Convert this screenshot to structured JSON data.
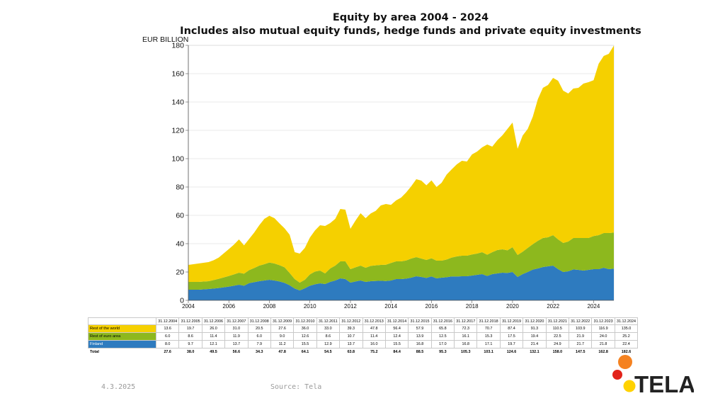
{
  "chart_data": {
    "type": "area",
    "stacked": true,
    "title": "Equity by area 2004 - 2024",
    "subtitle": "Includes also mutual equity funds, hedge funds and private equity investments",
    "ylabel": "EUR BILLION",
    "xlabel": "",
    "ylim": [
      0,
      180
    ],
    "yticks": [
      0,
      20,
      40,
      60,
      80,
      100,
      120,
      140,
      160,
      180
    ],
    "xlim": [
      2004,
      2025
    ],
    "xticks": [
      2004,
      2006,
      2008,
      2010,
      2012,
      2014,
      2016,
      2018,
      2020,
      2022,
      2024
    ],
    "grid": true,
    "legend": "table-below",
    "colors": {
      "finland": "#2e7bbf",
      "euro_area": "#8db81e",
      "world": "#f5d000"
    },
    "series_x": [
      2004.0,
      2004.5,
      2005.0,
      2005.25,
      2005.5,
      2005.75,
      2006.0,
      2006.25,
      2006.5,
      2006.75,
      2007.0,
      2007.25,
      2007.5,
      2007.75,
      2008.0,
      2008.25,
      2008.5,
      2008.75,
      2009.0,
      2009.25,
      2009.5,
      2009.75,
      2010.0,
      2010.25,
      2010.5,
      2010.75,
      2011.0,
      2011.25,
      2011.5,
      2011.75,
      2012.0,
      2012.25,
      2012.5,
      2012.75,
      2013.0,
      2013.25,
      2013.5,
      2013.75,
      2014.0,
      2014.25,
      2014.5,
      2014.75,
      2015.0,
      2015.25,
      2015.5,
      2015.75,
      2016.0,
      2016.25,
      2016.5,
      2016.75,
      2017.0,
      2017.25,
      2017.5,
      2017.75,
      2018.0,
      2018.25,
      2018.5,
      2018.75,
      2019.0,
      2019.25,
      2019.5,
      2019.75,
      2020.0,
      2020.25,
      2020.5,
      2020.75,
      2021.0,
      2021.25,
      2021.5,
      2021.75,
      2022.0,
      2022.25,
      2022.5,
      2022.75,
      2023.0,
      2023.25,
      2023.5,
      2023.75,
      2024.0,
      2024.25,
      2024.5,
      2024.75,
      2025.0
    ],
    "series": [
      {
        "name": "Finland",
        "values": [
          7.5,
          7.5,
          8.0,
          8.3,
          8.7,
          9.2,
          9.7,
          10.3,
          11.0,
          10.3,
          12.1,
          12.8,
          13.5,
          14.0,
          14.5,
          14.0,
          13.3,
          12.3,
          10.6,
          8.3,
          7.0,
          8.5,
          10.3,
          11.3,
          12.0,
          11.5,
          13.0,
          14.0,
          15.5,
          15.0,
          12.5,
          13.3,
          14.0,
          13.0,
          13.5,
          13.7,
          13.8,
          13.6,
          14.0,
          15.0,
          15.0,
          15.3,
          16.0,
          17.0,
          16.5,
          15.8,
          16.9,
          15.5,
          16.0,
          16.3,
          16.9,
          16.8,
          17.0,
          17.0,
          17.5,
          18.0,
          18.5,
          17.2,
          18.5,
          19.0,
          19.5,
          19.3,
          20.0,
          16.5,
          18.5,
          20.0,
          21.7,
          22.5,
          23.5,
          24.0,
          24.5,
          22.0,
          20.0,
          20.5,
          21.8,
          21.5,
          21.0,
          21.5,
          22.0,
          22.0,
          23.0,
          22.0,
          22.4
        ]
      },
      {
        "name": "Rest of euro area",
        "values": [
          5.5,
          5.5,
          5.5,
          6.0,
          6.5,
          7.0,
          7.5,
          8.0,
          8.5,
          8.5,
          9.2,
          10.0,
          11.0,
          11.5,
          12.2,
          12.0,
          11.5,
          11.0,
          8.7,
          6.7,
          5.5,
          6.0,
          8.0,
          9.0,
          9.0,
          7.5,
          9.5,
          10.5,
          12.0,
          12.5,
          9.5,
          10.0,
          10.5,
          10.0,
          10.8,
          11.0,
          11.2,
          11.5,
          12.4,
          12.5,
          12.5,
          12.8,
          13.5,
          13.5,
          13.0,
          12.7,
          12.8,
          12.5,
          12.0,
          12.5,
          13.3,
          14.2,
          14.5,
          14.5,
          14.9,
          15.0,
          15.5,
          15.0,
          15.5,
          16.5,
          16.5,
          16.0,
          17.5,
          15.5,
          15.8,
          17.0,
          17.9,
          19.5,
          20.5,
          20.5,
          21.5,
          21.0,
          20.5,
          21.0,
          22.2,
          22.5,
          23.0,
          22.5,
          23.4,
          24.0,
          24.5,
          25.5,
          25.4
        ]
      },
      {
        "name": "Rest of the world",
        "values": [
          12.0,
          13.0,
          13.5,
          14.0,
          15.0,
          17.0,
          19.0,
          21.0,
          23.5,
          20.0,
          22.0,
          25.0,
          28.5,
          32.0,
          33.0,
          32.0,
          29.5,
          27.5,
          27.0,
          19.0,
          20.5,
          22.5,
          26.0,
          29.0,
          32.0,
          33.5,
          32.0,
          33.0,
          37.0,
          36.5,
          28.5,
          33.0,
          37.0,
          35.0,
          37.0,
          38.5,
          42.0,
          42.9,
          41.0,
          43.0,
          45.0,
          48.0,
          51.0,
          55.0,
          55.0,
          52.7,
          55.0,
          52.0,
          55.0,
          60.0,
          62.3,
          65.0,
          67.0,
          66.5,
          70.6,
          72.0,
          74.0,
          77.8,
          74.5,
          77.5,
          80.5,
          85.7,
          88.0,
          75.0,
          82.0,
          84.0,
          90.0,
          100.0,
          106.0,
          107.5,
          111.0,
          112.0,
          107.5,
          104.5,
          105.5,
          106.0,
          109.0,
          110.0,
          110.0,
          121.0,
          125.0,
          126.5,
          132.0
        ]
      }
    ],
    "table": {
      "columns": [
        "31.12.2004",
        "31.12.2005",
        "31.12.2006",
        "31.12.2007",
        "31.12.2008",
        "31.12.2009",
        "31.12.2010",
        "31.12.2011",
        "31.12.2012",
        "31.12.2013",
        "31.12.2014",
        "31.12.2015",
        "31.12.2016",
        "31.12.2017",
        "31.12.2018",
        "31.12.2019",
        "31.12.2020",
        "31.12.2021",
        "31.12.2022",
        "31.12.2023",
        "31.12.2024"
      ],
      "rows": [
        {
          "label": "Rest of the world",
          "values": [
            "13.6",
            "19.7",
            "26.0",
            "31.0",
            "20.5",
            "27.6",
            "36.0",
            "33.0",
            "39.3",
            "47.8",
            "56.4",
            "57.9",
            "65.8",
            "72.3",
            "70.7",
            "87.4",
            "91.3",
            "110.5",
            "103.9",
            "116.9",
            "135.0"
          ]
        },
        {
          "label": "Rest of euro area",
          "values": [
            "6.0",
            "8.6",
            "11.4",
            "11.9",
            "6.0",
            "9.0",
            "12.6",
            "8.6",
            "10.7",
            "11.4",
            "12.4",
            "13.9",
            "12.5",
            "16.1",
            "15.3",
            "17.5",
            "19.4",
            "22.5",
            "21.9",
            "24.0",
            "25.2"
          ]
        },
        {
          "label": "Finland",
          "values": [
            "8.0",
            "9.7",
            "12.1",
            "13.7",
            "7.9",
            "11.2",
            "15.5",
            "12.9",
            "13.7",
            "16.0",
            "15.5",
            "16.8",
            "17.0",
            "16.8",
            "17.1",
            "19.7",
            "21.4",
            "24.9",
            "21.7",
            "21.8",
            "22.4"
          ]
        },
        {
          "label": "Total",
          "values": [
            "27.6",
            "38.0",
            "49.5",
            "56.6",
            "34.3",
            "47.8",
            "64.1",
            "54.5",
            "63.8",
            "75.2",
            "84.4",
            "88.5",
            "95.3",
            "105.3",
            "103.1",
            "124.6",
            "132.1",
            "158.0",
            "147.5",
            "162.8",
            "182.6"
          ]
        }
      ]
    }
  },
  "footer": {
    "date": "4.3.2025",
    "source": "Source: Tela"
  },
  "logo": {
    "text": "TELA",
    "colors": [
      "#f58220",
      "#e2231a",
      "#ffd200"
    ]
  }
}
